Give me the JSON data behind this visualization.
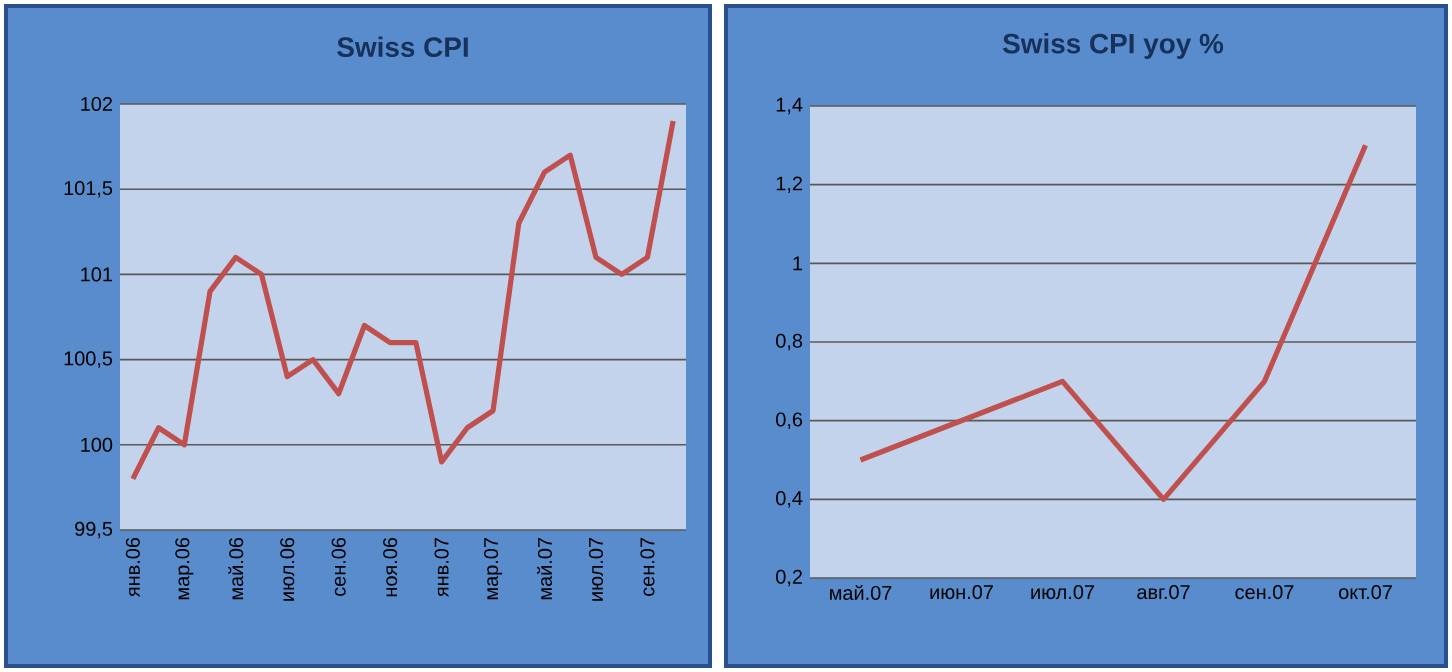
{
  "chart_data": [
    {
      "type": "line",
      "title": "Swiss CPI",
      "categories": [
        "янв.06",
        null,
        "мар.06",
        null,
        "май.06",
        null,
        "июл.06",
        null,
        "сен.06",
        null,
        "ноя.06",
        null,
        "янв.07",
        null,
        "мар.07",
        null,
        "май.07",
        null,
        "июл.07",
        null,
        "сен.07",
        null
      ],
      "series": [
        {
          "color": "#c0504d",
          "values": [
            99.8,
            100.1,
            100.0,
            100.9,
            101.1,
            101.0,
            100.4,
            100.5,
            100.3,
            100.7,
            100.6,
            100.6,
            99.9,
            100.1,
            100.2,
            101.3,
            101.6,
            101.7,
            101.1,
            101.0,
            101.1,
            101.9
          ]
        }
      ],
      "ylim": [
        99.5,
        102
      ],
      "yticks": [
        {
          "value": 99.5,
          "label": "99,5"
        },
        100,
        {
          "value": 100.5,
          "label": "100,5"
        },
        101,
        {
          "value": 101.5,
          "label": "101,5"
        },
        102
      ],
      "grid": "y"
    },
    {
      "type": "line",
      "title": "Swiss CPI yoy %",
      "categories": [
        "май.07",
        "июн.07",
        "июл.07",
        "авг.07",
        "сен.07",
        "окт.07"
      ],
      "series": [
        {
          "color": "#c0504d",
          "values": [
            0.5,
            0.6,
            0.7,
            0.4,
            0.7,
            1.3
          ]
        }
      ],
      "ylim": [
        0.2,
        1.4
      ],
      "yticks": [
        {
          "value": 0.2,
          "label": "0,2"
        },
        {
          "value": 0.4,
          "label": "0,4"
        },
        {
          "value": 0.6,
          "label": "0,6"
        },
        {
          "value": 0.8,
          "label": "0,8"
        },
        1,
        {
          "value": 1.2,
          "label": "1,2"
        },
        {
          "value": 1.4,
          "label": "1,4"
        }
      ],
      "grid": "y"
    }
  ]
}
